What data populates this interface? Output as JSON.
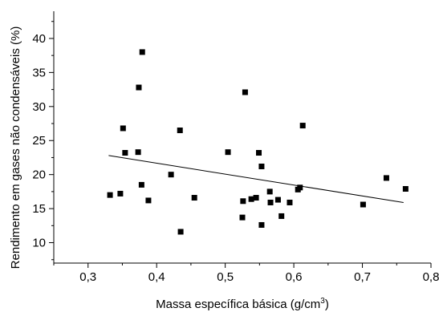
{
  "chart_data": {
    "type": "scatter",
    "title": "",
    "xlabel": "Massa específica básica (g/cm",
    "xlabel_superscript": "3",
    "xlabel_suffix": ")",
    "ylabel": "Rendimento em gases não condensáveis (%)",
    "xlim": [
      0.25,
      0.8
    ],
    "ylim": [
      7,
      44
    ],
    "xticks": [
      0.3,
      0.4,
      0.5,
      0.6,
      0.7,
      0.8
    ],
    "xtick_labels": [
      "0,3",
      "0,4",
      "0,5",
      "0,6",
      "0,7",
      "0,8"
    ],
    "yticks": [
      10,
      15,
      20,
      25,
      30,
      35,
      40
    ],
    "ytick_labels": [
      "10",
      "15",
      "20",
      "25",
      "30",
      "35",
      "40"
    ],
    "grid": false,
    "marker": "square",
    "marker_color": "#000000",
    "points": [
      {
        "x": 0.332,
        "y": 17.0
      },
      {
        "x": 0.347,
        "y": 17.2
      },
      {
        "x": 0.351,
        "y": 26.8
      },
      {
        "x": 0.354,
        "y": 23.2
      },
      {
        "x": 0.373,
        "y": 23.3
      },
      {
        "x": 0.374,
        "y": 32.8
      },
      {
        "x": 0.378,
        "y": 18.5
      },
      {
        "x": 0.379,
        "y": 38.0
      },
      {
        "x": 0.388,
        "y": 16.2
      },
      {
        "x": 0.421,
        "y": 20.0
      },
      {
        "x": 0.434,
        "y": 26.5
      },
      {
        "x": 0.435,
        "y": 11.6
      },
      {
        "x": 0.455,
        "y": 16.6
      },
      {
        "x": 0.504,
        "y": 23.3
      },
      {
        "x": 0.525,
        "y": 13.7
      },
      {
        "x": 0.526,
        "y": 16.1
      },
      {
        "x": 0.529,
        "y": 32.1
      },
      {
        "x": 0.538,
        "y": 16.4
      },
      {
        "x": 0.545,
        "y": 16.6
      },
      {
        "x": 0.549,
        "y": 23.2
      },
      {
        "x": 0.553,
        "y": 21.2
      },
      {
        "x": 0.553,
        "y": 12.6
      },
      {
        "x": 0.565,
        "y": 17.5
      },
      {
        "x": 0.566,
        "y": 15.9
      },
      {
        "x": 0.577,
        "y": 16.3
      },
      {
        "x": 0.582,
        "y": 13.9
      },
      {
        "x": 0.594,
        "y": 15.9
      },
      {
        "x": 0.606,
        "y": 17.8
      },
      {
        "x": 0.609,
        "y": 18.1
      },
      {
        "x": 0.613,
        "y": 27.2
      },
      {
        "x": 0.701,
        "y": 15.6
      },
      {
        "x": 0.735,
        "y": 19.5
      },
      {
        "x": 0.763,
        "y": 17.9
      }
    ],
    "trendline": {
      "x": [
        0.33,
        0.76
      ],
      "y": [
        22.8,
        15.9
      ]
    }
  }
}
